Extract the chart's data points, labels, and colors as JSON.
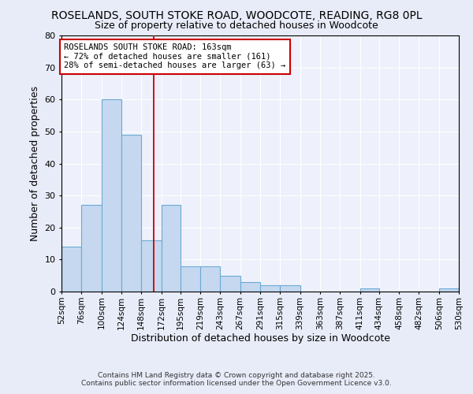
{
  "title_line1": "ROSELANDS, SOUTH STOKE ROAD, WOODCOTE, READING, RG8 0PL",
  "title_line2": "Size of property relative to detached houses in Woodcote",
  "xlabel": "Distribution of detached houses by size in Woodcote",
  "ylabel": "Number of detached properties",
  "bin_labels": [
    "52sqm",
    "76sqm",
    "100sqm",
    "124sqm",
    "148sqm",
    "172sqm",
    "195sqm",
    "219sqm",
    "243sqm",
    "267sqm",
    "291sqm",
    "315sqm",
    "339sqm",
    "363sqm",
    "387sqm",
    "411sqm",
    "434sqm",
    "458sqm",
    "482sqm",
    "506sqm",
    "530sqm"
  ],
  "bin_edges": [
    52,
    76,
    100,
    124,
    148,
    172,
    195,
    219,
    243,
    267,
    291,
    315,
    339,
    363,
    387,
    411,
    434,
    458,
    482,
    506,
    530
  ],
  "counts": [
    14,
    27,
    60,
    49,
    16,
    27,
    8,
    8,
    5,
    3,
    2,
    2,
    0,
    0,
    0,
    1,
    0,
    0,
    0,
    1,
    0
  ],
  "bar_color": "#c5d8f0",
  "bar_edge_color": "#6aaad4",
  "bg_color": "#eef1fb",
  "grid_color": "#ffffff",
  "property_size": 163,
  "red_line_color": "#cc0000",
  "annotation_text_line1": "ROSELANDS SOUTH STOKE ROAD: 163sqm",
  "annotation_text_line2": "← 72% of detached houses are smaller (161)",
  "annotation_text_line3": "28% of semi-detached houses are larger (63) →",
  "annotation_box_color": "#ffffff",
  "annotation_box_edge_color": "#cc0000",
  "ylim": [
    0,
    80
  ],
  "yticks": [
    0,
    10,
    20,
    30,
    40,
    50,
    60,
    70,
    80
  ],
  "footer_line1": "Contains HM Land Registry data © Crown copyright and database right 2025.",
  "footer_line2": "Contains public sector information licensed under the Open Government Licence v3.0.",
  "background_color": "#e8ecf8"
}
